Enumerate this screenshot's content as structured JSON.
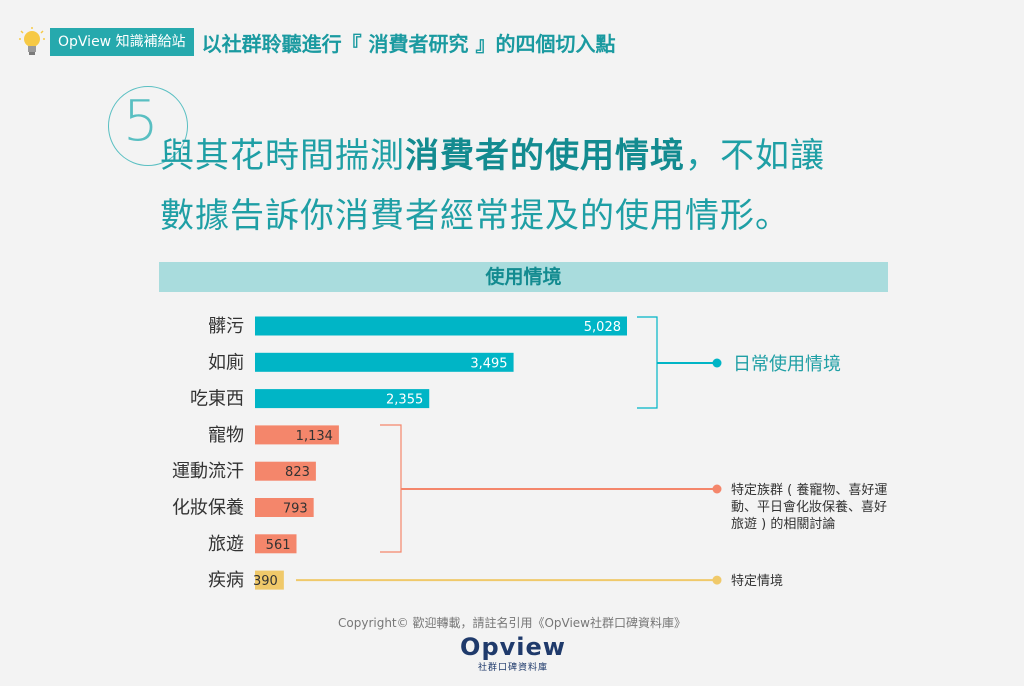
{
  "header": {
    "tag_label": "OpView 知識補給站",
    "title": "以社群聆聽進行『 消費者研究 』的四個切入點"
  },
  "point_number": "5",
  "headline": {
    "line1_pre": "與其花時間揣測",
    "line1_bold": "消費者的使用情境",
    "line1_post": "，不如讓",
    "line2": "數據告訴你消費者經常提及的使用情形。"
  },
  "chart_data": {
    "type": "bar",
    "orientation": "horizontal",
    "title": "使用情境",
    "categories": [
      "髒污",
      "如廁",
      "吃東西",
      "寵物",
      "運動流汗",
      "化妝保養",
      "旅遊",
      "疾病"
    ],
    "values": [
      5028,
      3495,
      2355,
      1134,
      823,
      793,
      561,
      390
    ],
    "value_labels": [
      "5,028",
      "3,495",
      "2,355",
      "1,134",
      "823",
      "793",
      "561",
      "390"
    ],
    "groups": [
      {
        "label": "日常使用情境",
        "members": [
          0,
          1,
          2
        ],
        "color": "#00b5c6"
      },
      {
        "label_lines": [
          "特定族群 ( 養寵物、喜好運",
          "動、平日會化妝保養、喜好",
          "旅遊 ) 的相關討論"
        ],
        "members": [
          3,
          4,
          5,
          6
        ],
        "color": "#f4866b"
      },
      {
        "label": "特定情境",
        "members": [
          7
        ],
        "color": "#f0c96a"
      }
    ],
    "grid": false
  },
  "footer": {
    "copyright": "Copyright© 歡迎轉載，請註名引用《OpView社群口碑資料庫》",
    "logo_main": "Opview",
    "logo_sub": "社群口碑資料庫"
  }
}
